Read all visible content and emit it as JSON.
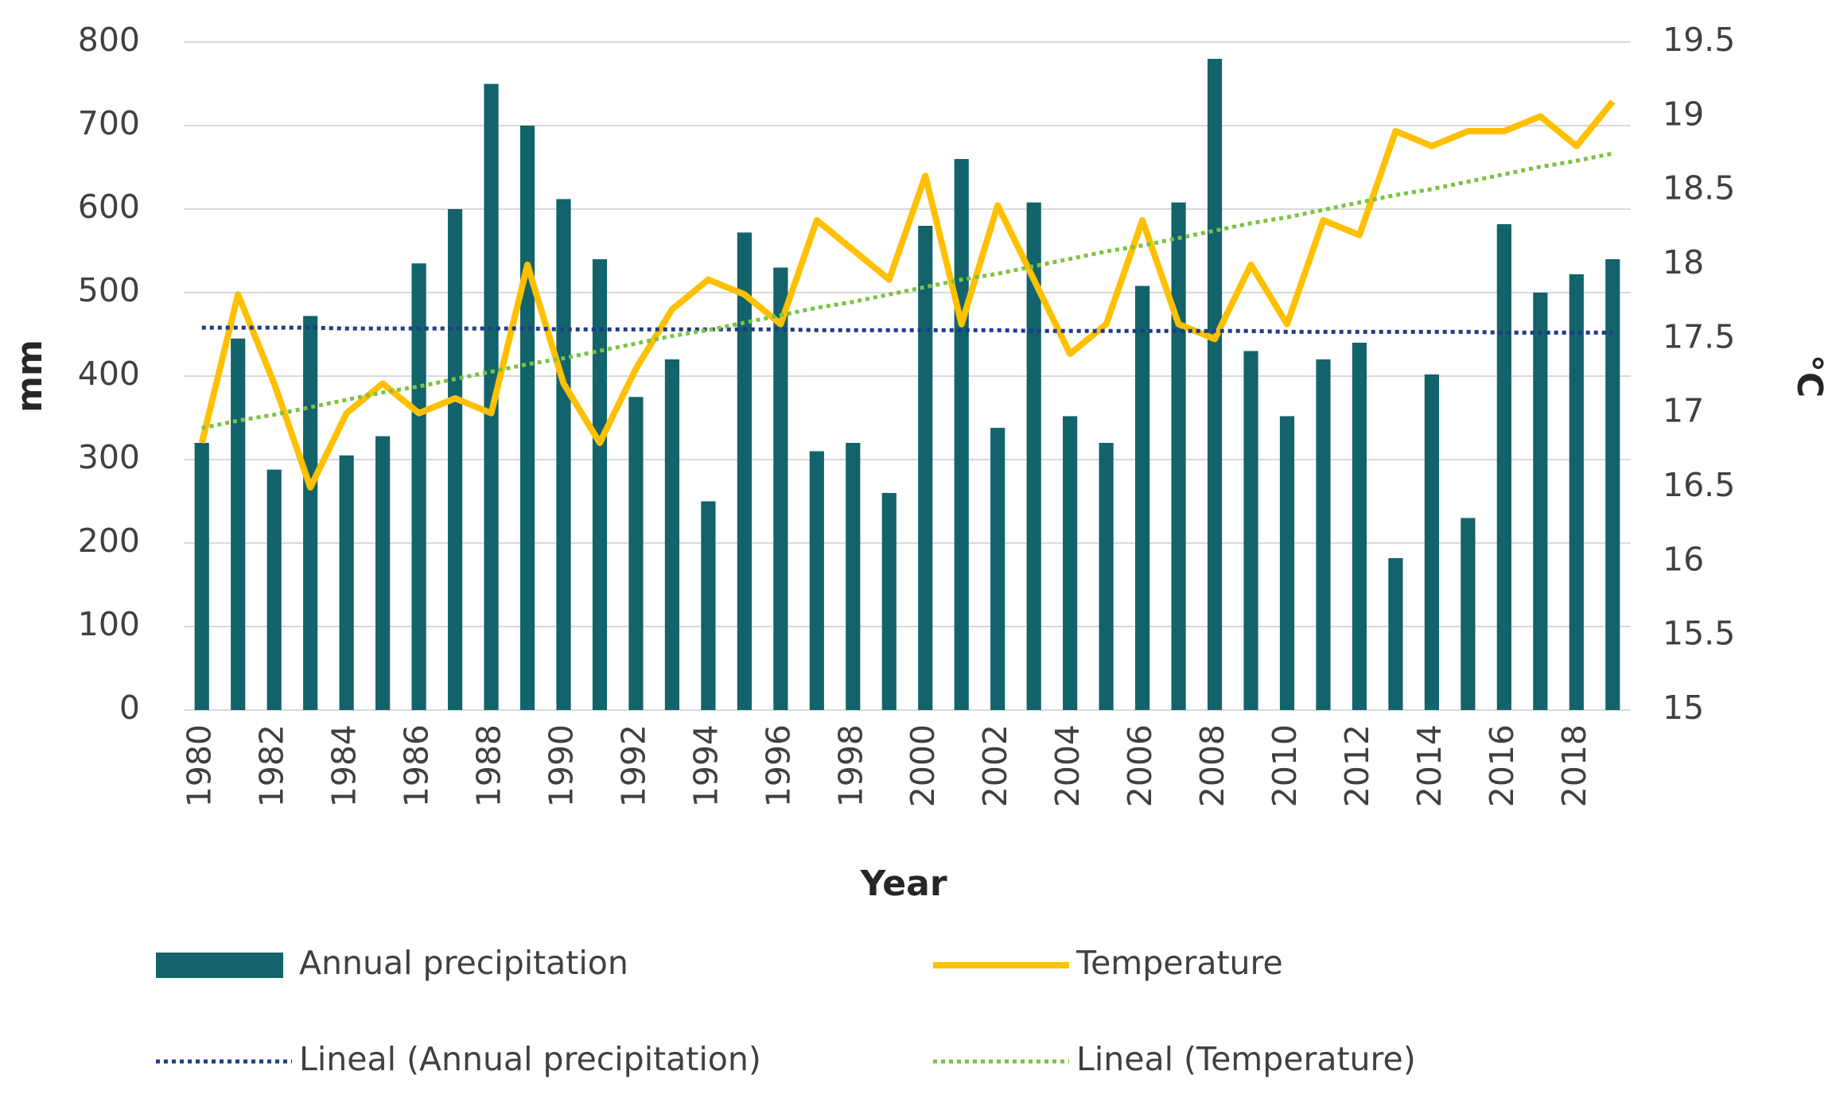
{
  "chart_data": {
    "type": "bar-line",
    "x_label": "Year",
    "y_label": "mm",
    "y2_label": "°C",
    "categories": [
      "1980",
      null,
      "1982",
      null,
      "1984",
      null,
      "1986",
      null,
      "1988",
      null,
      "1990",
      null,
      "1992",
      null,
      "1994",
      null,
      "1996",
      null,
      "1998",
      null,
      "2000",
      null,
      "2002",
      null,
      "2004",
      null,
      "2006",
      null,
      "2008",
      null,
      "2010",
      null,
      "2012",
      null,
      "2014",
      null,
      "2016",
      null,
      "2018",
      null
    ],
    "series": [
      {
        "name": "Annual precipitation",
        "type": "bar",
        "color": "#12636b",
        "values": [
          320,
          445,
          288,
          472,
          305,
          328,
          535,
          600,
          750,
          700,
          612,
          540,
          375,
          420,
          250,
          572,
          530,
          310,
          320,
          260,
          580,
          660,
          338,
          608,
          352,
          320,
          508,
          608,
          780,
          430,
          352,
          420,
          440,
          182,
          402,
          230,
          582,
          500,
          522,
          540
        ]
      },
      {
        "name": "Temperature",
        "type": "line",
        "axis": "y2",
        "color": "#ffc000",
        "values": [
          16.8,
          17.8,
          17.2,
          16.5,
          17.0,
          17.2,
          17.0,
          17.1,
          17.0,
          18.0,
          17.2,
          16.8,
          17.3,
          17.7,
          17.9,
          17.8,
          17.6,
          18.3,
          18.1,
          17.9,
          18.6,
          17.6,
          18.4,
          17.9,
          17.4,
          17.6,
          18.3,
          17.6,
          17.5,
          18.0,
          17.6,
          18.3,
          18.2,
          18.9,
          18.8,
          18.9,
          18.9,
          19.0,
          18.8,
          19.1
        ]
      },
      {
        "name": "Lineal (Annual precipitation)",
        "type": "line",
        "dotted": true,
        "color": "#1f3c88",
        "values": [
          458,
          458,
          458,
          458,
          457,
          457,
          457,
          457,
          457,
          457,
          456,
          456,
          456,
          456,
          456,
          456,
          456,
          455,
          455,
          455,
          455,
          455,
          455,
          454,
          454,
          454,
          454,
          454,
          454,
          454,
          453,
          453,
          453,
          453,
          453,
          453,
          452,
          452,
          452,
          452
        ]
      },
      {
        "name": "Lineal (Temperature)",
        "type": "line",
        "dotted": true,
        "axis": "y2",
        "color": "#7cc242",
        "values": [
          16.9,
          16.95,
          16.99,
          17.04,
          17.09,
          17.14,
          17.18,
          17.23,
          17.28,
          17.33,
          17.37,
          17.42,
          17.47,
          17.52,
          17.56,
          17.61,
          17.66,
          17.71,
          17.75,
          17.8,
          17.85,
          17.9,
          17.94,
          17.99,
          18.04,
          18.09,
          18.13,
          18.18,
          18.23,
          18.28,
          18.32,
          18.37,
          18.42,
          18.47,
          18.51,
          18.56,
          18.61,
          18.66,
          18.7,
          18.75
        ]
      }
    ],
    "ylim": [
      0,
      800
    ],
    "yticks": [
      0,
      100,
      200,
      300,
      400,
      500,
      600,
      700,
      800
    ],
    "y2lim": [
      15,
      19.5
    ],
    "y2ticks": [
      15,
      15.5,
      16,
      16.5,
      17,
      17.5,
      18,
      18.5,
      19,
      19.5
    ],
    "grid": true
  }
}
